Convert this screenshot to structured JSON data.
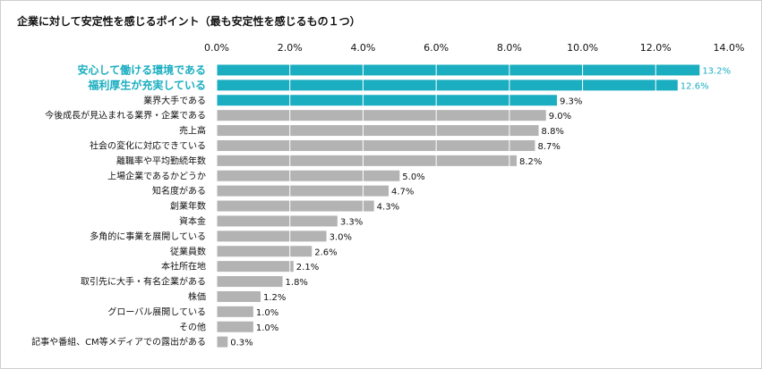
{
  "chart_data": {
    "type": "bar",
    "orientation": "horizontal",
    "title": "企業に対して安定性を感じるポイント（最も安定性を感じるもの１つ）",
    "xlabel": "",
    "ylabel": "",
    "xlim": [
      0,
      14
    ],
    "x_ticks": [
      "0.0%",
      "2.0%",
      "4.0%",
      "6.0%",
      "8.0%",
      "10.0%",
      "12.0%",
      "14.0%"
    ],
    "grid": true,
    "categories": [
      "安心して働ける環境である",
      "福利厚生が充実している",
      "業界大手である",
      "今後成長が見込まれる業界・企業である",
      "売上高",
      "社会の変化に対応できている",
      "離職率や平均勤続年数",
      "上場企業であるかどうか",
      "知名度がある",
      "創業年数",
      "資本金",
      "多角的に事業を展開している",
      "従業員数",
      "本社所在地",
      "取引先に大手・有名企業がある",
      "株価",
      "グローバル展開している",
      "その他",
      "記事や番組、CM等メディアでの露出がある"
    ],
    "values": [
      13.2,
      12.6,
      9.3,
      9.0,
      8.8,
      8.7,
      8.2,
      5.0,
      4.7,
      4.3,
      3.3,
      3.0,
      2.6,
      2.1,
      1.8,
      1.2,
      1.0,
      1.0,
      0.3
    ],
    "value_labels": [
      "13.2%",
      "12.6%",
      "9.3%",
      "9.0%",
      "8.8%",
      "8.7%",
      "8.2%",
      "5.0%",
      "4.7%",
      "4.3%",
      "3.3%",
      "3.0%",
      "2.6%",
      "2.1%",
      "1.8%",
      "1.2%",
      "1.0%",
      "1.0%",
      "0.3%"
    ],
    "highlighted": [
      true,
      true,
      true,
      false,
      false,
      false,
      false,
      false,
      false,
      false,
      false,
      false,
      false,
      false,
      false,
      false,
      false,
      false,
      false
    ],
    "highlight_labels": [
      true,
      true,
      false,
      false,
      false,
      false,
      false,
      false,
      false,
      false,
      false,
      false,
      false,
      false,
      false,
      false,
      false,
      false,
      false
    ],
    "colors": {
      "highlight": "#1aaec0",
      "default": "#b3b3b3",
      "grid": "#ffffff",
      "text": "#111111"
    }
  }
}
